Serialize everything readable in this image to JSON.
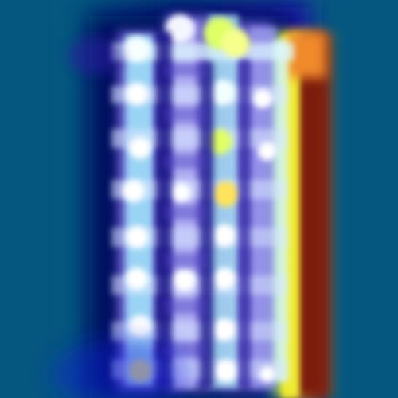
{
  "image": {
    "kind": "heatmap-overlay",
    "description_visible_text": ""
  },
  "colors": {
    "background": "#05577f",
    "deep_navy": "#000b6a",
    "violet": "#8a7df0",
    "cyan_glow": "#9ff6ff",
    "white_core": "#f4f7ff",
    "yellow": "#e9f22a",
    "orange": "#f08a2c",
    "dark_red": "#6b1207"
  }
}
